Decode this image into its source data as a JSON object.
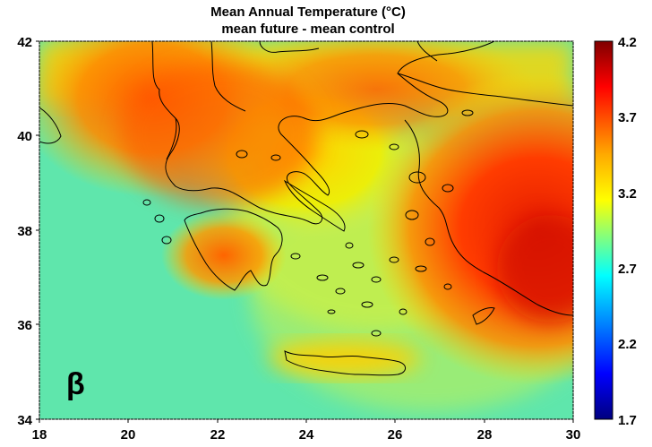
{
  "title": {
    "line1": "Mean Annual Temperature (°C)",
    "line2": "mean future -  mean control"
  },
  "panel_label": "β",
  "map": {
    "lon_range": [
      18,
      30
    ],
    "lat_range": [
      34,
      42
    ],
    "x_ticks": [
      "18",
      "20",
      "22",
      "24",
      "26",
      "28",
      "30"
    ],
    "y_ticks": [
      "42",
      "40",
      "38",
      "36",
      "34"
    ]
  },
  "colorbar": {
    "ticks": [
      "4.2",
      "3.7",
      "3.2",
      "2.7",
      "2.2",
      "1.7"
    ],
    "range": [
      1.7,
      4.2
    ],
    "colors": [
      "#7f0000",
      "#ff0000",
      "#ffaa00",
      "#ffff00",
      "#80ff80",
      "#00ffff",
      "#0080ff",
      "#0000ff",
      "#00007f"
    ]
  }
}
